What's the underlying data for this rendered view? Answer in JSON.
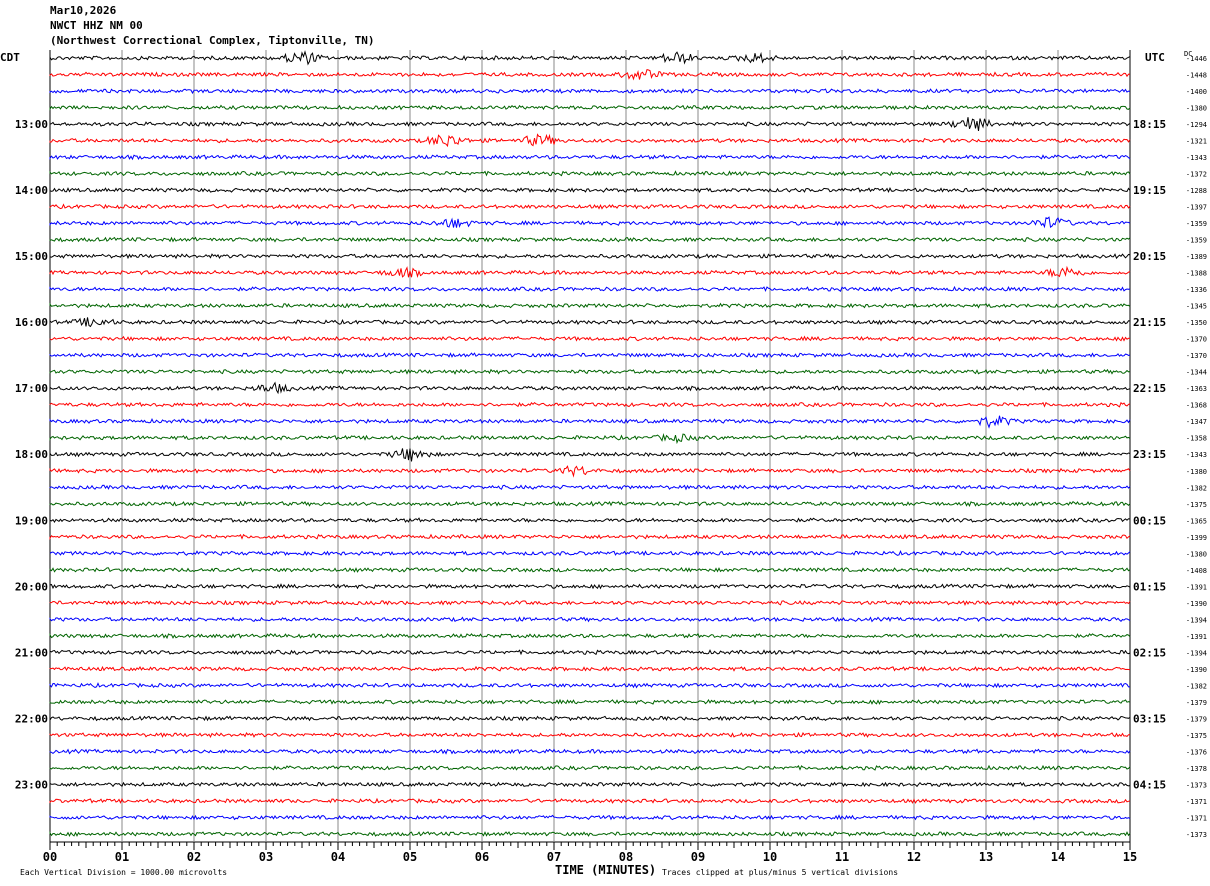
{
  "header": {
    "date": "Mar10,2026",
    "station": "NWCT HHZ NM 00",
    "location": "(Northwest Correctional Complex, Tiptonville, TN)"
  },
  "chart_data": {
    "type": "line",
    "title": "NWCT HHZ NM 00 helicorder",
    "left_axis_label": "CDT",
    "right_axis_label": "UTC",
    "dc_label": "DC",
    "xlabel": "TIME (MINUTES)",
    "xlim": [
      0,
      15
    ],
    "x_ticks": [
      "00",
      "01",
      "02",
      "03",
      "04",
      "05",
      "06",
      "07",
      "08",
      "09",
      "10",
      "11",
      "12",
      "13",
      "14",
      "15"
    ],
    "traces_per_hour": 4,
    "left_hour_labels": [
      "13:00",
      "14:00",
      "15:00",
      "16:00",
      "17:00",
      "18:00",
      "19:00",
      "20:00",
      "21:00",
      "22:00",
      "23:00"
    ],
    "right_hour_labels": [
      "18:15",
      "19:15",
      "20:15",
      "21:15",
      "22:15",
      "23:15",
      "00:15",
      "01:15",
      "02:15",
      "03:15",
      "04:15"
    ],
    "trace_colors": [
      "#000000",
      "#ff0000",
      "#0000ff",
      "#006400"
    ],
    "dc_offsets": [
      -1446,
      -1448,
      -1400,
      -1380,
      -1294,
      -1321,
      -1343,
      -1372,
      -1288,
      -1397,
      -1359,
      -1359,
      -1389,
      -1388,
      -1336,
      -1345,
      -1350,
      -1370,
      -1370,
      -1344,
      -1363,
      -1368,
      -1347,
      -1358,
      -1343,
      -1380,
      -1382,
      -1375,
      -1365,
      -1399,
      -1380,
      -1408,
      -1391,
      -1390,
      -1394,
      -1391,
      -1394,
      -1390,
      -1382,
      -1379,
      -1379,
      -1375,
      -1376,
      -1378,
      -1373,
      -1371,
      -1371,
      -1373
    ],
    "events": [
      {
        "trace": 0,
        "minute": 3.5,
        "amp": 6
      },
      {
        "trace": 0,
        "minute": 8.7,
        "amp": 5
      },
      {
        "trace": 0,
        "minute": 9.8,
        "amp": 4
      },
      {
        "trace": 1,
        "minute": 8.2,
        "amp": 5
      },
      {
        "trace": 4,
        "minute": 12.8,
        "amp": 7
      },
      {
        "trace": 5,
        "minute": 5.5,
        "amp": 6
      },
      {
        "trace": 5,
        "minute": 6.8,
        "amp": 5
      },
      {
        "trace": 10,
        "minute": 13.9,
        "amp": 5
      },
      {
        "trace": 10,
        "minute": 5.6,
        "amp": 4
      },
      {
        "trace": 13,
        "minute": 14.1,
        "amp": 5
      },
      {
        "trace": 13,
        "minute": 4.9,
        "amp": 4
      },
      {
        "trace": 16,
        "minute": 0.6,
        "amp": 4
      },
      {
        "trace": 20,
        "minute": 3.1,
        "amp": 4
      },
      {
        "trace": 22,
        "minute": 13.1,
        "amp": 5
      },
      {
        "trace": 24,
        "minute": 5.0,
        "amp": 6
      },
      {
        "trace": 25,
        "minute": 7.3,
        "amp": 4
      },
      {
        "trace": 23,
        "minute": 8.7,
        "amp": 3
      }
    ],
    "footer_left": "Each Vertical Division = 1000.00 microvolts",
    "footer_right": "Traces clipped at plus/minus 5 vertical divisions"
  }
}
